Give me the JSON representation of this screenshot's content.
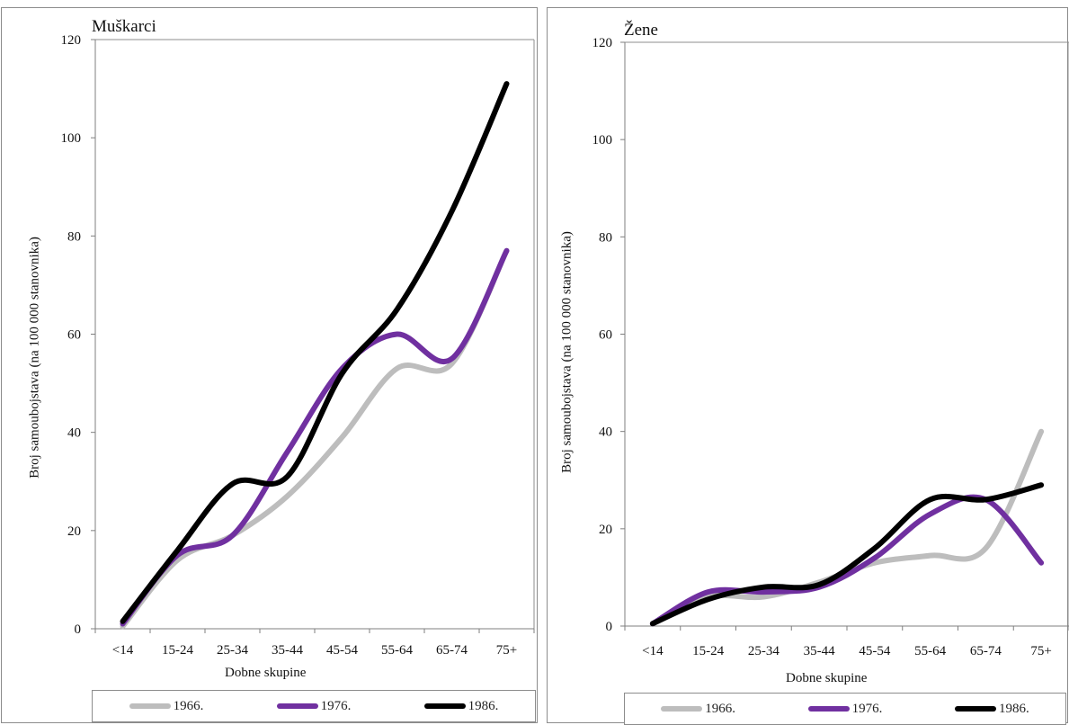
{
  "chart_data": [
    {
      "type": "line",
      "title": "Muškarci",
      "xlabel": "Dobne skupine",
      "ylabel": "Broj samoubojstava (na 100 000 stanovnika)",
      "ylim": [
        0,
        120
      ],
      "yticks": [
        "0",
        "20",
        "40",
        "60",
        "80",
        "100",
        "120"
      ],
      "categories": [
        "<14",
        "15-24",
        "25-34",
        "35-44",
        "45-54",
        "55-64",
        "65-74",
        "75+"
      ],
      "legend_position": "bottom",
      "series": [
        {
          "name": "1966.",
          "color": "#bdbdbd",
          "values": [
            0.5,
            14,
            19,
            27,
            39,
            53,
            54,
            77
          ]
        },
        {
          "name": "1976.",
          "color": "#7030a0",
          "values": [
            1,
            15,
            19,
            36,
            53,
            60,
            55,
            77
          ]
        },
        {
          "name": "1986.",
          "color": "#000000",
          "values": [
            1.5,
            16,
            29.5,
            31,
            52,
            65,
            85,
            111
          ]
        }
      ]
    },
    {
      "type": "line",
      "title": "Žene",
      "xlabel": "Dobne skupine",
      "ylabel": "Broj samoubojstava (na 100 000 stanovnika)",
      "ylim": [
        0,
        120
      ],
      "yticks": [
        "0",
        "20",
        "40",
        "60",
        "80",
        "100",
        "120"
      ],
      "categories": [
        "<14",
        "15-24",
        "25-34",
        "35-44",
        "45-54",
        "55-64",
        "65-74",
        "75+"
      ],
      "legend_position": "bottom",
      "series": [
        {
          "name": "1966.",
          "color": "#bdbdbd",
          "values": [
            0.5,
            6,
            6,
            9,
            13,
            14.5,
            16,
            40
          ]
        },
        {
          "name": "1976.",
          "color": "#7030a0",
          "values": [
            0.5,
            7,
            7,
            8,
            14,
            23,
            26,
            13
          ]
        },
        {
          "name": "1986.",
          "color": "#000000",
          "values": [
            0.5,
            5.5,
            8,
            8.5,
            16,
            26,
            26,
            29
          ]
        }
      ]
    }
  ]
}
